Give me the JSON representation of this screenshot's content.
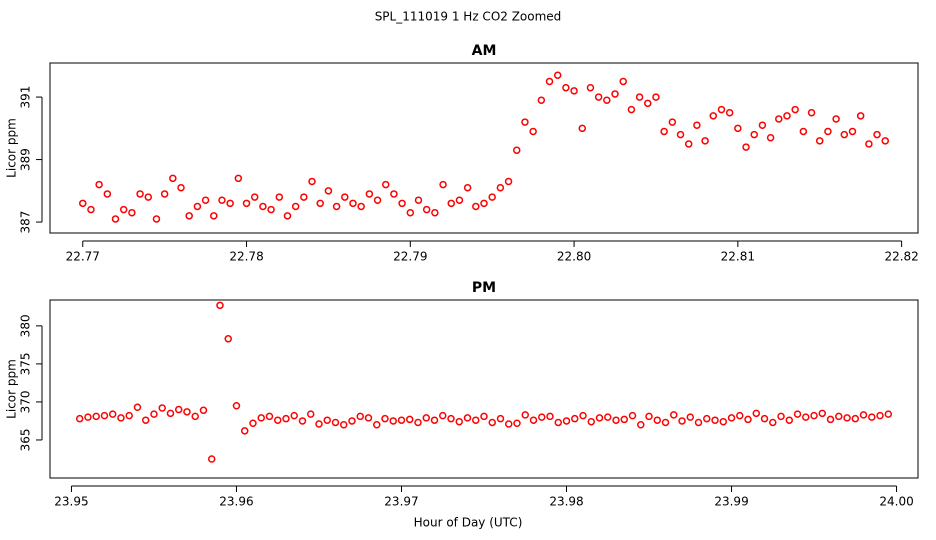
{
  "title": "SPL_111019  1 Hz CO2 Zoomed",
  "x_label": "Hour of Day (UTC)",
  "chart_data": [
    {
      "type": "scatter",
      "title": "AM",
      "y_label": "Licor ppm",
      "color": "#ff0000",
      "xlim": [
        22.768,
        22.821
      ],
      "ylim": [
        386.65,
        392.09
      ],
      "xticks": [
        22.77,
        22.78,
        22.79,
        {
          "value": 22.8,
          "label": "22.80"
        },
        22.81,
        22.82
      ],
      "yticks": [
        387,
        389,
        391
      ],
      "x": [
        22.77,
        22.7705,
        22.771,
        22.7715,
        22.772,
        22.7725,
        22.773,
        22.7735,
        22.774,
        22.7745,
        22.775,
        22.7755,
        22.776,
        22.7765,
        22.777,
        22.7775,
        22.778,
        22.7785,
        22.779,
        22.7795,
        22.78,
        22.7805,
        22.781,
        22.7815,
        22.782,
        22.7825,
        22.783,
        22.7835,
        22.784,
        22.7845,
        22.785,
        22.7855,
        22.786,
        22.7865,
        22.787,
        22.7875,
        22.788,
        22.7885,
        22.789,
        22.7895,
        22.79,
        22.7905,
        22.791,
        22.7915,
        22.792,
        22.7925,
        22.793,
        22.7935,
        22.794,
        22.7945,
        22.795,
        22.7955,
        22.796,
        22.7965,
        22.797,
        22.7975,
        22.798,
        22.7985,
        22.799,
        22.7995,
        22.8,
        22.8005,
        22.801,
        22.8015,
        22.802,
        22.8025,
        22.803,
        22.8035,
        22.804,
        22.8045,
        22.805,
        22.8055,
        22.806,
        22.8065,
        22.807,
        22.8075,
        22.808,
        22.8085,
        22.809,
        22.8095,
        22.81,
        22.8105,
        22.811,
        22.8115,
        22.812,
        22.8125,
        22.813,
        22.8135,
        22.814,
        22.8145,
        22.815,
        22.8155,
        22.816,
        22.8165,
        22.817,
        22.8175,
        22.818,
        22.8185,
        22.819
      ],
      "values": [
        387.6,
        387.4,
        388.2,
        387.9,
        387.1,
        387.4,
        387.3,
        387.9,
        387.8,
        387.1,
        387.9,
        388.4,
        388.1,
        387.2,
        387.5,
        387.7,
        387.2,
        387.7,
        387.6,
        388.4,
        387.6,
        387.8,
        387.5,
        387.4,
        387.8,
        387.2,
        387.5,
        387.8,
        388.3,
        387.6,
        388.0,
        387.5,
        387.8,
        387.6,
        387.5,
        387.9,
        387.7,
        388.2,
        387.9,
        387.6,
        387.3,
        387.7,
        387.4,
        387.3,
        388.2,
        387.6,
        387.7,
        388.1,
        387.5,
        387.6,
        387.8,
        388.1,
        388.3,
        389.3,
        390.2,
        389.9,
        390.9,
        391.5,
        391.7,
        391.3,
        391.2,
        390.0,
        391.3,
        391.0,
        390.9,
        391.1,
        391.5,
        390.6,
        391.0,
        390.8,
        391.0,
        389.9,
        390.2,
        389.8,
        389.5,
        390.1,
        389.6,
        390.4,
        390.6,
        390.5,
        390.0,
        389.4,
        389.8,
        390.1,
        389.7,
        390.3,
        390.4,
        390.6,
        389.9,
        390.5,
        389.6,
        389.9,
        390.3,
        389.8,
        389.9,
        390.4,
        389.5,
        389.8,
        389.6
      ]
    },
    {
      "type": "scatter",
      "title": "PM",
      "y_label": "Licor ppm",
      "color": "#ff0000",
      "xlim": [
        23.9487,
        24.0013
      ],
      "ylim": [
        360.0,
        383.4
      ],
      "xticks": [
        23.95,
        23.96,
        23.97,
        23.98,
        23.99,
        {
          "value": 24,
          "label": "24.00"
        }
      ],
      "yticks": [
        365,
        370,
        375,
        380
      ],
      "x": [
        23.9505,
        23.951,
        23.9515,
        23.952,
        23.9525,
        23.953,
        23.9535,
        23.954,
        23.9545,
        23.955,
        23.9555,
        23.956,
        23.9565,
        23.957,
        23.9575,
        23.958,
        23.9585,
        23.959,
        23.9595,
        23.96,
        23.9605,
        23.961,
        23.9615,
        23.962,
        23.9625,
        23.963,
        23.9635,
        23.964,
        23.9645,
        23.965,
        23.9655,
        23.966,
        23.9665,
        23.967,
        23.9675,
        23.968,
        23.9685,
        23.969,
        23.9695,
        23.97,
        23.9705,
        23.971,
        23.9715,
        23.972,
        23.9725,
        23.973,
        23.9735,
        23.974,
        23.9745,
        23.975,
        23.9755,
        23.976,
        23.9765,
        23.977,
        23.9775,
        23.978,
        23.9785,
        23.979,
        23.9795,
        23.98,
        23.9805,
        23.981,
        23.9815,
        23.982,
        23.9825,
        23.983,
        23.9835,
        23.984,
        23.9845,
        23.985,
        23.9855,
        23.986,
        23.9865,
        23.987,
        23.9875,
        23.988,
        23.9885,
        23.989,
        23.9895,
        23.99,
        23.9905,
        23.991,
        23.9915,
        23.992,
        23.9925,
        23.993,
        23.9935,
        23.994,
        23.9945,
        23.995,
        23.9955,
        23.996,
        23.9965,
        23.997,
        23.9975,
        23.998,
        23.9985,
        23.999,
        23.9995
      ],
      "values": [
        367.8,
        368.0,
        368.1,
        368.2,
        368.4,
        367.9,
        368.2,
        369.3,
        367.6,
        368.4,
        369.2,
        368.5,
        369.0,
        368.7,
        368.1,
        368.9,
        362.5,
        382.7,
        378.3,
        369.5,
        366.2,
        367.2,
        367.9,
        368.1,
        367.6,
        367.8,
        368.2,
        367.5,
        368.4,
        367.1,
        367.6,
        367.3,
        367.0,
        367.5,
        368.1,
        367.9,
        367.0,
        367.8,
        367.5,
        367.6,
        367.7,
        367.3,
        367.9,
        367.6,
        368.2,
        367.8,
        367.4,
        367.9,
        367.6,
        368.1,
        367.3,
        367.8,
        367.1,
        367.2,
        368.3,
        367.6,
        368.0,
        368.1,
        367.3,
        367.5,
        367.8,
        368.2,
        367.4,
        367.9,
        368.0,
        367.6,
        367.7,
        368.2,
        367.0,
        368.1,
        367.6,
        367.3,
        368.3,
        367.5,
        368.0,
        367.3,
        367.8,
        367.6,
        367.4,
        367.9,
        368.2,
        367.7,
        368.5,
        367.8,
        367.3,
        368.1,
        367.6,
        368.4,
        368.0,
        368.2,
        368.5,
        367.7,
        368.1,
        367.9,
        367.8,
        368.3,
        368.0,
        368.2,
        368.4
      ]
    }
  ]
}
